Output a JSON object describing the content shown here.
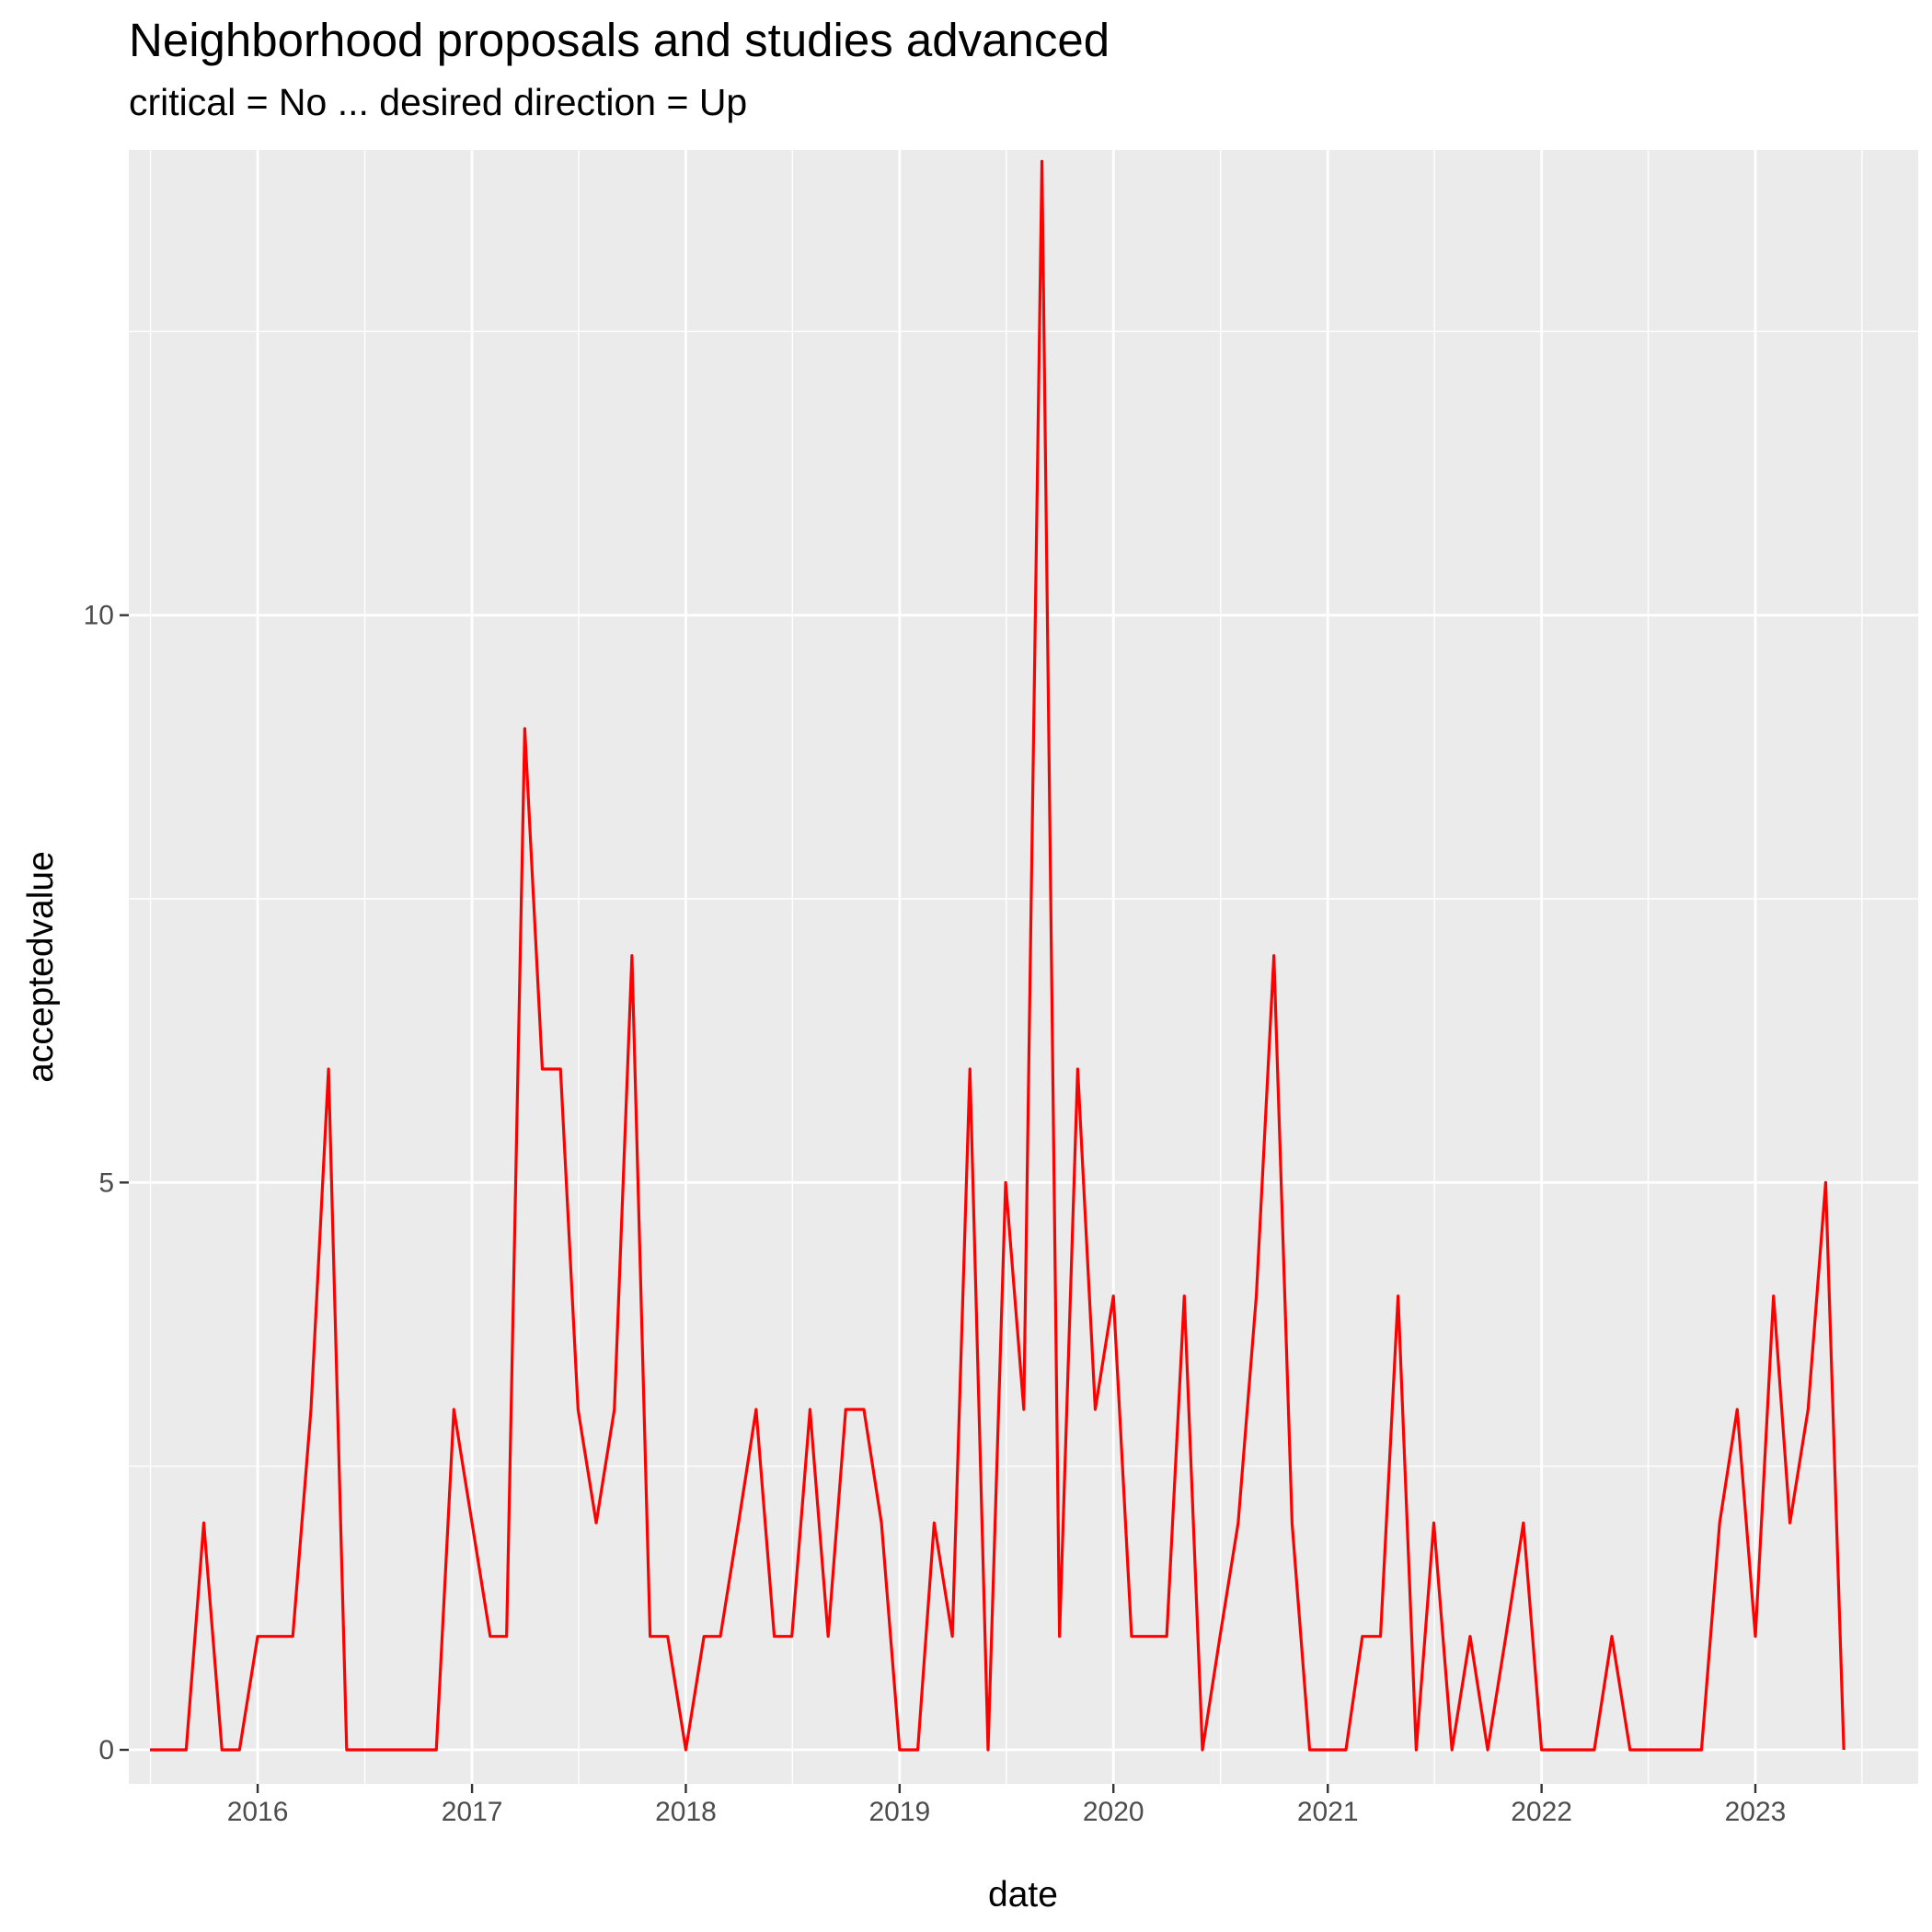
{
  "chart_data": {
    "type": "line",
    "title": "Neighborhood proposals and studies advanced",
    "subtitle": "critical = No ... desired direction = Up",
    "xlabel": "date",
    "ylabel": "acceptedvalue",
    "x_ticks": [
      "2016",
      "2017",
      "2018",
      "2019",
      "2020",
      "2021",
      "2022",
      "2023"
    ],
    "y_ticks": [
      0,
      5,
      10
    ],
    "ylim": [
      -0.3,
      14.1
    ],
    "xlim": [
      "2015-05-26",
      "2023-10-06"
    ],
    "grid": true,
    "line_color": "#ff0000",
    "panel_background": "#ebebeb",
    "series": [
      {
        "x": [
          "2015-07-01",
          "2015-08-01",
          "2015-09-01",
          "2015-10-01",
          "2015-11-01",
          "2015-12-01",
          "2016-01-01",
          "2016-02-01",
          "2016-03-01",
          "2016-04-01",
          "2016-05-01",
          "2016-06-01",
          "2016-07-01",
          "2016-08-01",
          "2016-09-01",
          "2016-10-01",
          "2016-11-01",
          "2016-12-01",
          "2017-01-01",
          "2017-02-01",
          "2017-03-01",
          "2017-04-01",
          "2017-05-01",
          "2017-06-01",
          "2017-07-01",
          "2017-08-01",
          "2017-09-01",
          "2017-10-01",
          "2017-11-01",
          "2017-12-01",
          "2018-01-01",
          "2018-02-01",
          "2018-03-01",
          "2018-04-01",
          "2018-05-01",
          "2018-06-01",
          "2018-07-01",
          "2018-08-01",
          "2018-09-01",
          "2018-10-01",
          "2018-11-01",
          "2018-12-01",
          "2019-01-01",
          "2019-02-01",
          "2019-03-01",
          "2019-04-01",
          "2019-05-01",
          "2019-06-01",
          "2019-07-01",
          "2019-08-01",
          "2019-09-01",
          "2019-10-01",
          "2019-11-01",
          "2019-12-01",
          "2020-01-01",
          "2020-02-01",
          "2020-03-01",
          "2020-04-01",
          "2020-05-01",
          "2020-06-01",
          "2020-07-01",
          "2020-08-01",
          "2020-09-01",
          "2020-10-01",
          "2020-11-01",
          "2020-12-01",
          "2021-01-01",
          "2021-02-01",
          "2021-03-01",
          "2021-04-01",
          "2021-05-01",
          "2021-06-01",
          "2021-07-01",
          "2021-08-01",
          "2021-09-01",
          "2021-10-01",
          "2021-11-01",
          "2021-12-01",
          "2022-01-01",
          "2022-02-01",
          "2022-03-01",
          "2022-04-01",
          "2022-05-01",
          "2022-06-01",
          "2022-07-01",
          "2022-08-01",
          "2022-09-01",
          "2022-10-01",
          "2022-11-01",
          "2022-12-01",
          "2023-01-01",
          "2023-02-01",
          "2023-03-01",
          "2023-04-01",
          "2023-05-01",
          "2023-06-01"
        ],
        "values": [
          0,
          0,
          0,
          2,
          0,
          0,
          1,
          1,
          1,
          3,
          6,
          0,
          0,
          0,
          0,
          0,
          0,
          3,
          2,
          1,
          1,
          9,
          6,
          6,
          3,
          2,
          3,
          7,
          1,
          1,
          0,
          1,
          1,
          2,
          3,
          1,
          1,
          3,
          1,
          3,
          3,
          2,
          0,
          0,
          2,
          1,
          6,
          0,
          5,
          3,
          14,
          1,
          6,
          3,
          4,
          1,
          1,
          1,
          4,
          0,
          1,
          2,
          4,
          7,
          2,
          0,
          0,
          0,
          1,
          1,
          4,
          0,
          2,
          0,
          1,
          0,
          1,
          2,
          0,
          0,
          0,
          0,
          1,
          0,
          0,
          0,
          0,
          0,
          2,
          3,
          1,
          4,
          2,
          3,
          5,
          0
        ]
      }
    ]
  }
}
